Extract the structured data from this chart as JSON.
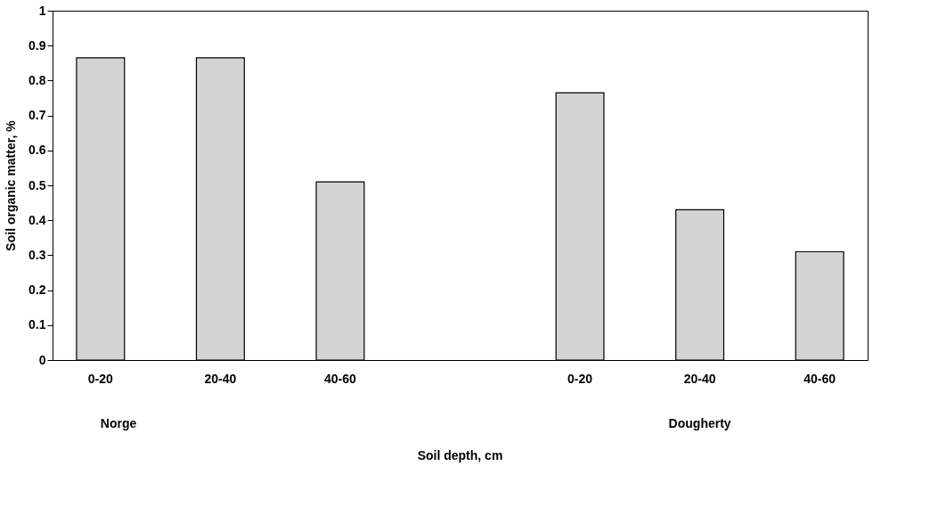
{
  "chart_data": {
    "type": "bar",
    "categories": [
      "0-20",
      "20-40",
      "40-60",
      null,
      "0-20",
      "20-40",
      "40-60"
    ],
    "values": [
      0.865,
      0.865,
      0.51,
      null,
      0.765,
      0.43,
      0.31
    ],
    "color": "#d4d4d4",
    "ylabel": "Soil organic matter, %",
    "ylim": [
      0,
      1
    ],
    "yticks": [
      0,
      0.1,
      0.2,
      0.3,
      0.4,
      0.5,
      0.6,
      0.7,
      0.8,
      0.9,
      1
    ],
    "annotations": [
      "Norge",
      "Dougherty",
      "Soil depth, cm"
    ],
    "grid": false
  }
}
